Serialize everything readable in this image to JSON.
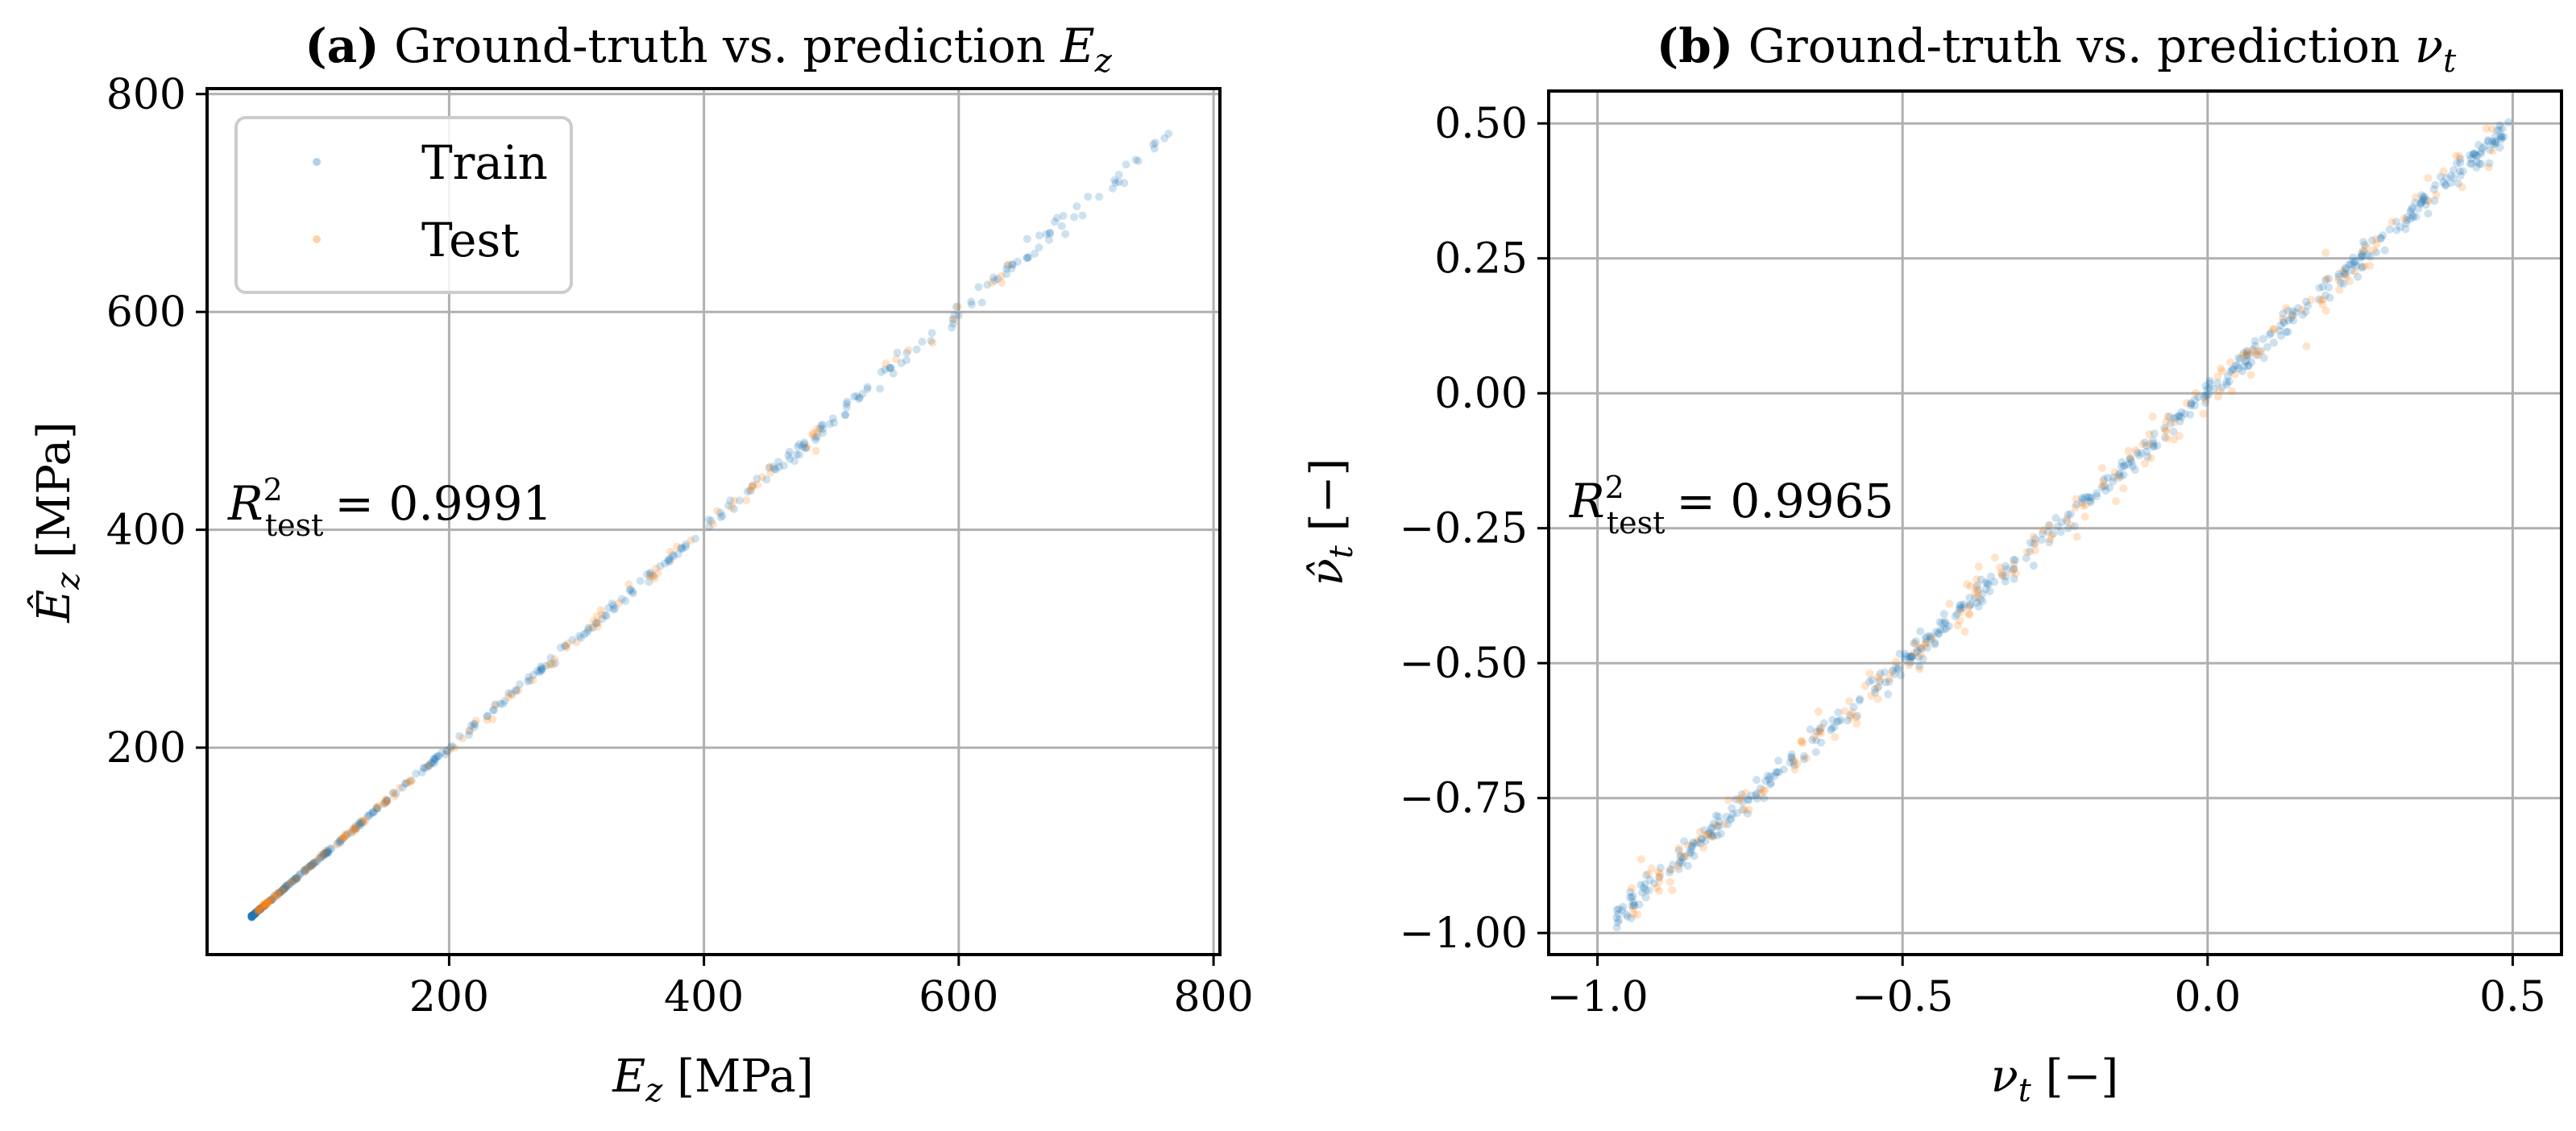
{
  "chart_data": [
    {
      "type": "scatter",
      "panel": "a",
      "title_bold": "(a)",
      "title": "Ground-truth vs. prediction E_z",
      "title_sym_main": "E",
      "title_sym_sub": "z",
      "xlabel_sym_main": "E",
      "xlabel_sym_sub": "z",
      "xlabel_unit": "[MPa]",
      "ylabel_sym_main": "Ê",
      "ylabel_sym_sub": "z",
      "ylabel_unit": "[MPa]",
      "xlim": [
        10,
        805
      ],
      "ylim": [
        10,
        805
      ],
      "xticks": [
        200,
        400,
        600,
        800
      ],
      "xtick_labels": [
        "200",
        "400",
        "600",
        "800"
      ],
      "yticks": [
        200,
        400,
        600,
        800
      ],
      "ytick_labels": [
        "200",
        "400",
        "600",
        "800"
      ],
      "grid": true,
      "legend": {
        "position": "top-left",
        "entries": [
          "Train",
          "Test"
        ]
      },
      "annotation": {
        "main": "R",
        "sup": "2",
        "sub": "test",
        "value": "= 0.9991"
      },
      "series": [
        {
          "name": "Train",
          "color": "#1f77b4",
          "n_points": 420,
          "range": [
            45,
            768
          ],
          "noise_rel": 0.007
        },
        {
          "name": "Test",
          "color": "#ff7f0e",
          "n_points": 140,
          "range": [
            50,
            640
          ],
          "noise_rel": 0.012
        }
      ],
      "r2_test": 0.9991
    },
    {
      "type": "scatter",
      "panel": "b",
      "title_bold": "(b)",
      "title": "Ground-truth vs. prediction ν_t",
      "title_sym_main": "ν",
      "title_sym_sub": "t",
      "xlabel_sym_main": "ν",
      "xlabel_sym_sub": "t",
      "xlabel_unit": "[−]",
      "ylabel_sym_main": "ν̂",
      "ylabel_sym_sub": "t",
      "ylabel_unit": "[−]",
      "xlim": [
        -1.08,
        0.58
      ],
      "ylim": [
        -1.04,
        0.56
      ],
      "xticks": [
        -1.0,
        -0.5,
        0.0,
        0.5
      ],
      "xtick_labels": [
        "−1.0",
        "−0.5",
        "0.0",
        "0.5"
      ],
      "yticks": [
        -1.0,
        -0.75,
        -0.5,
        -0.25,
        0.0,
        0.25,
        0.5
      ],
      "ytick_labels": [
        "−1.00",
        "−0.75",
        "−0.50",
        "−0.25",
        "0.00",
        "0.25",
        "0.50"
      ],
      "grid": true,
      "annotation": {
        "main": "R",
        "sup": "2",
        "sub": "test",
        "value": "= 0.9965"
      },
      "series": [
        {
          "name": "Train",
          "color": "#1f77b4",
          "n_points": 520,
          "range": [
            -0.97,
            0.5
          ],
          "noise_abs": 0.012
        },
        {
          "name": "Test",
          "color": "#ff7f0e",
          "n_points": 200,
          "range": [
            -0.95,
            0.48
          ],
          "noise_abs": 0.02
        }
      ],
      "r2_test": 0.9965
    }
  ]
}
